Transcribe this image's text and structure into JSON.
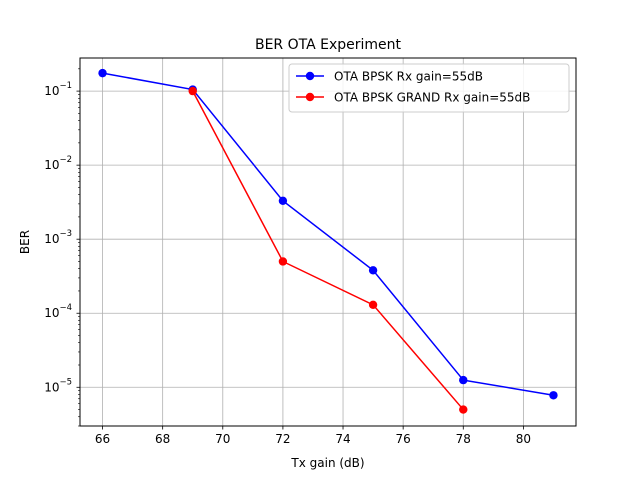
{
  "chart_data": {
    "type": "line",
    "title": "BER OTA Experiment",
    "xlabel": "Tx gain (dB)",
    "ylabel": "BER",
    "xlim": [
      65.25,
      81.75
    ],
    "ylim": [
      3e-06,
      0.28
    ],
    "yscale": "log",
    "grid": true,
    "legend_position": "top-right",
    "xticks": [
      66,
      68,
      70,
      72,
      74,
      76,
      78,
      80
    ],
    "xtick_labels": [
      "66",
      "68",
      "70",
      "72",
      "74",
      "76",
      "78",
      "80"
    ],
    "yticks": [
      {
        "value": 0.1,
        "base": "10",
        "exp": "−1"
      },
      {
        "value": 0.01,
        "base": "10",
        "exp": "−2"
      },
      {
        "value": 0.001,
        "base": "10",
        "exp": "−3"
      },
      {
        "value": 0.0001,
        "base": "10",
        "exp": "−4"
      },
      {
        "value": 1e-05,
        "base": "10",
        "exp": "−5"
      }
    ],
    "series": [
      {
        "name": "OTA BPSK Rx gain=55dB",
        "color": "#0000ff",
        "x": [
          66,
          69,
          72,
          75,
          78,
          81
        ],
        "y": [
          0.175,
          0.105,
          0.0033,
          0.00038,
          1.25e-05,
          7.8e-06
        ]
      },
      {
        "name": "OTA BPSK GRAND Rx gain=55dB",
        "color": "#ff0000",
        "x": [
          69,
          72,
          75,
          78
        ],
        "y": [
          0.1,
          0.0005,
          0.00013,
          5e-06
        ]
      }
    ]
  }
}
